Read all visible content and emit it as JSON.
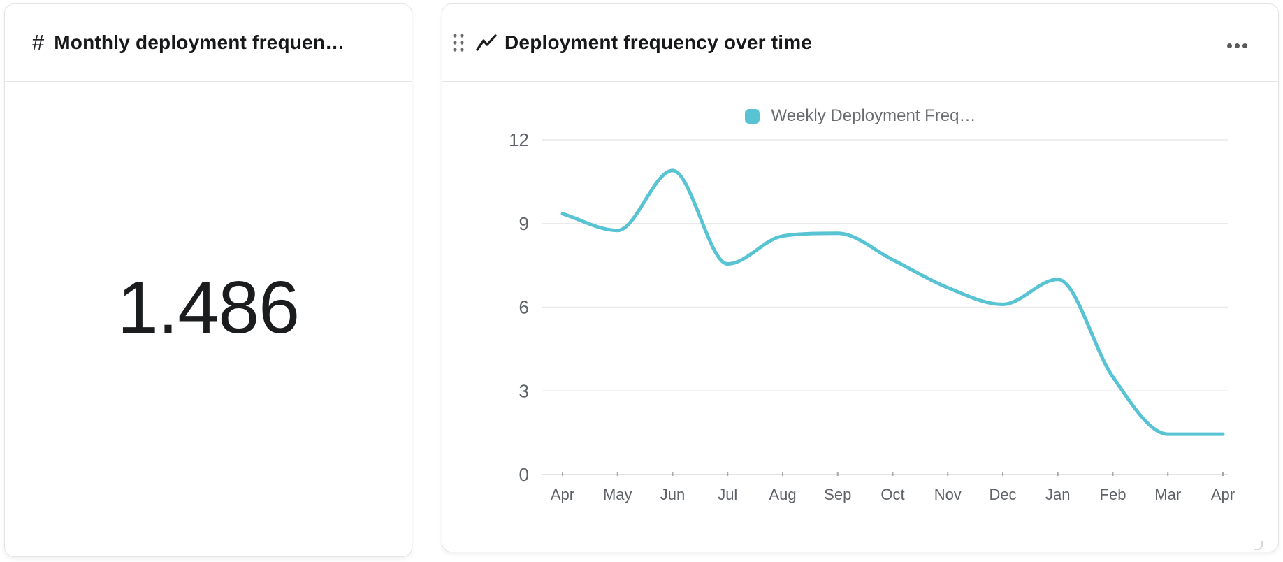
{
  "metric_card": {
    "icon_glyph": "#",
    "title": "Monthly deployment frequen…",
    "value": "1.486"
  },
  "chart_card": {
    "title": "Deployment frequency over time"
  },
  "chart_data": {
    "type": "line",
    "title": "Deployment frequency over time",
    "legend_position": "top",
    "grid": true,
    "x_labels": [
      "Apr",
      "May",
      "Jun",
      "Jul",
      "Aug",
      "Sep",
      "Oct",
      "Nov",
      "Dec",
      "Jan",
      "Feb",
      "Mar",
      "Apr"
    ],
    "yticks": [
      0,
      3,
      6,
      9,
      12
    ],
    "ylim": [
      0,
      12
    ],
    "series": [
      {
        "name": "Weekly Deployment Freq…",
        "color": "#58C3D3",
        "values": [
          9.35,
          8.75,
          10.9,
          7.55,
          8.55,
          8.65,
          7.7,
          6.7,
          6.1,
          7.0,
          3.5,
          1.45,
          1.45
        ]
      }
    ]
  }
}
